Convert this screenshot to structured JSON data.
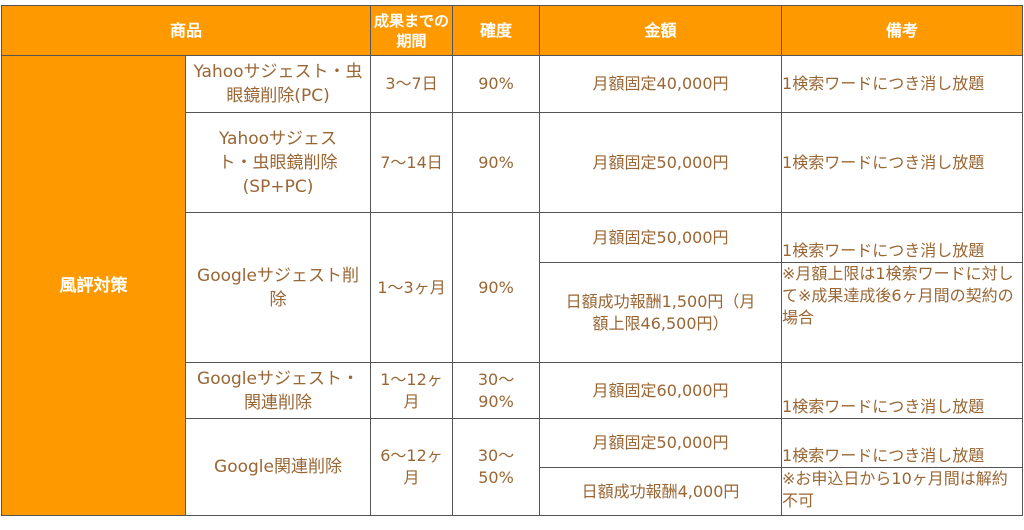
{
  "colors": {
    "header_bg": "#ff9900",
    "text": "#9a6634",
    "header_text": "#ffffff"
  },
  "headers": {
    "product": "商品",
    "period": "成果までの期間",
    "certainty": "確度",
    "price": "金額",
    "notes": "備考"
  },
  "category": "風評対策",
  "rows": [
    {
      "product": "Yahooサジェスト・虫眼鏡削除(PC)",
      "period": "3〜7日",
      "certainty": "90%",
      "prices": [
        {
          "price": "月額固定40,000円",
          "note": "1検索ワードにつき消し放題"
        }
      ]
    },
    {
      "product": "Yahooサジェスト・虫眼鏡削除(SP+PC)",
      "period": "7〜14日",
      "certainty": "90%",
      "prices": [
        {
          "price": "月額固定50,000円",
          "note": "1検索ワードにつき消し放題"
        }
      ]
    },
    {
      "product": "Googleサジェスト削除",
      "period": "1〜3ヶ月",
      "certainty": "90%",
      "prices": [
        {
          "price": "月額固定50,000円",
          "note": "1検索ワードにつき消し放題"
        },
        {
          "price": "日額成功報酬1,500円（月額上限46,500円）",
          "note": "※月額上限は1検索ワードに対して※成果達成後6ヶ月間の契約の場合"
        }
      ]
    },
    {
      "product": "Googleサジェスト・関連削除",
      "period": "1〜12ヶ月",
      "certainty": "30〜90%",
      "prices": [
        {
          "price": "月額固定60,000円",
          "note": "1検索ワードにつき消し放題"
        }
      ]
    },
    {
      "product": "Google関連削除",
      "period": "6〜12ヶ月",
      "certainty": "30〜50%",
      "prices": [
        {
          "price": "月額固定50,000円",
          "note": "1検索ワードにつき消し放題"
        },
        {
          "price": "日額成功報酬4,000円",
          "note": "※お申込日から10ヶ月間は解約不可"
        }
      ]
    }
  ]
}
